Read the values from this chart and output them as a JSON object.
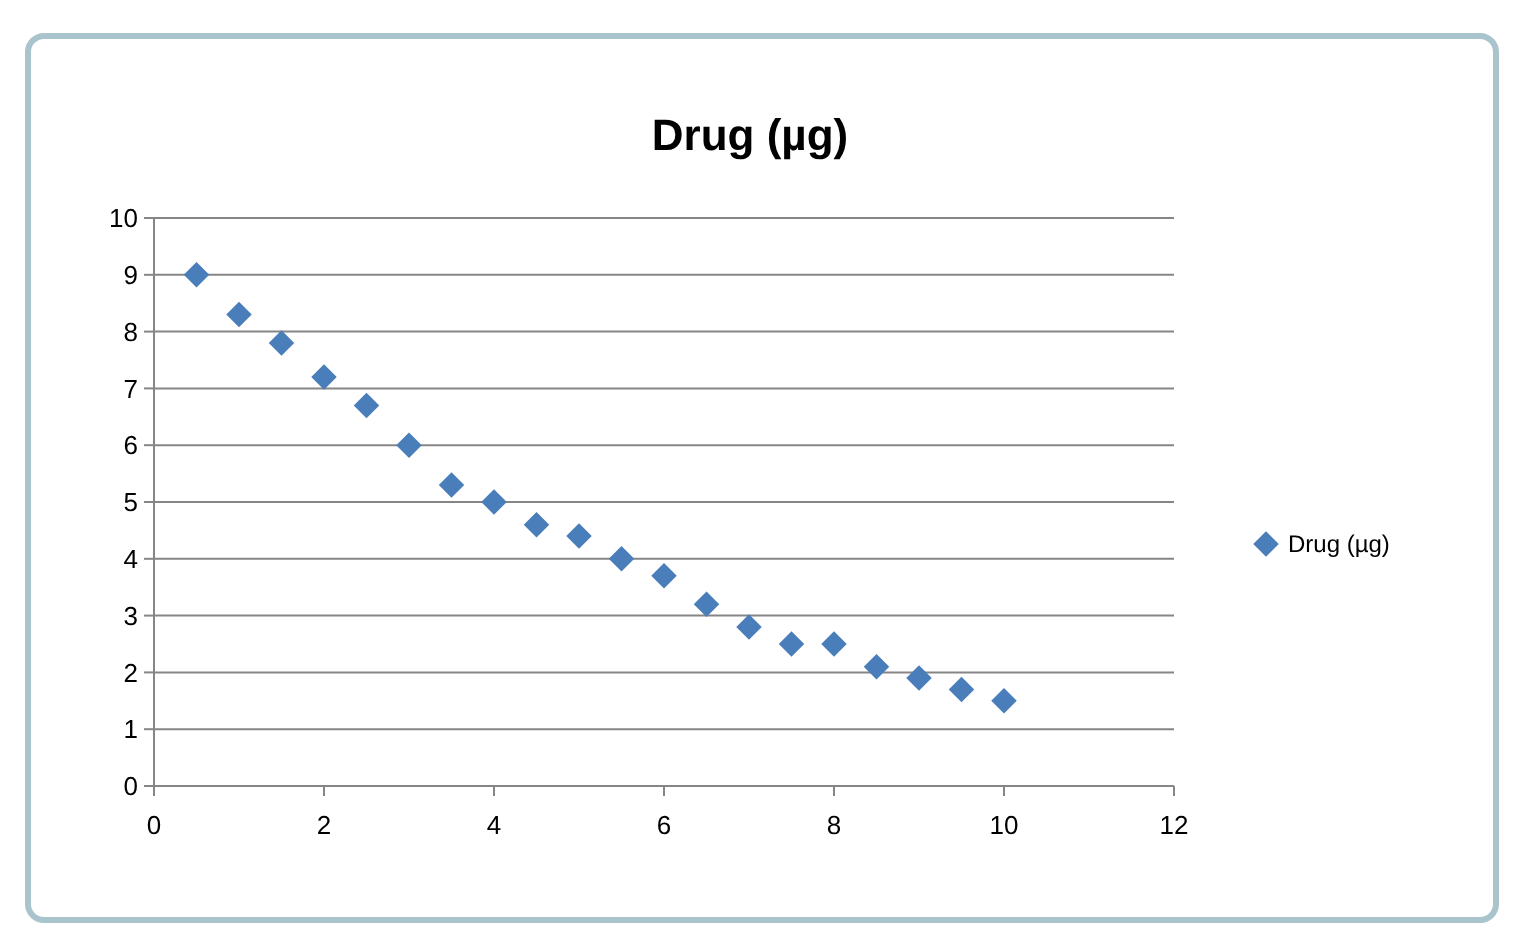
{
  "chart_data": {
    "type": "scatter",
    "title": "Drug (µg)",
    "x": [
      0.5,
      1,
      1.5,
      2,
      2.5,
      3,
      3.5,
      4,
      4.5,
      5,
      5.5,
      6,
      6.5,
      7,
      7.5,
      8,
      8.5,
      9,
      9.5,
      10
    ],
    "series": [
      {
        "name": "Drug (µg)",
        "color": "#4a7ebb",
        "values": [
          9.0,
          8.3,
          7.8,
          7.2,
          6.7,
          6.0,
          5.3,
          5.0,
          4.6,
          4.4,
          4.0,
          3.7,
          3.2,
          2.8,
          2.5,
          2.5,
          2.1,
          1.9,
          1.7,
          1.5
        ]
      }
    ],
    "xlim": [
      0,
      12
    ],
    "xticks": [
      0,
      2,
      4,
      6,
      8,
      10,
      12
    ],
    "ylim": [
      0,
      10
    ],
    "yticks": [
      0,
      1,
      2,
      3,
      4,
      5,
      6,
      7,
      8,
      9,
      10
    ],
    "grid": "y",
    "legend": "right",
    "marker": "diamond"
  }
}
